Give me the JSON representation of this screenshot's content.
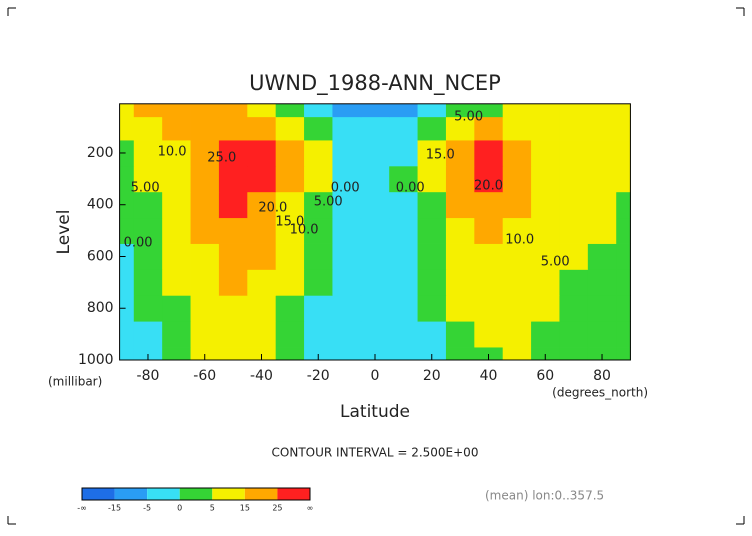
{
  "chart_data": {
    "type": "contour",
    "title": "UWND_1988-ANN_NCEP",
    "y_label": "Level",
    "y_unit": "(millibar)",
    "x_label": "Latitude",
    "x_unit": "(degrees_north)",
    "contour_interval": "CONTOUR INTERVAL = 2.500E+00",
    "footnote": "(mean) lon:0..357.5",
    "x": [
      -90,
      -80,
      -70,
      -60,
      -50,
      -40,
      -30,
      -20,
      -10,
      0,
      10,
      20,
      30,
      40,
      50,
      60,
      70,
      80,
      90
    ],
    "y": [
      1000,
      900,
      800,
      700,
      600,
      500,
      400,
      300,
      200,
      100,
      20
    ],
    "z": [
      [
        -1,
        -1,
        2,
        6,
        8,
        5,
        0,
        -3,
        -4,
        -3,
        -3,
        -2,
        1,
        4,
        5,
        3,
        1,
        0,
        0
      ],
      [
        -1,
        -1,
        3,
        8,
        11,
        7,
        2,
        -2,
        -4,
        -3,
        -3,
        -1,
        3,
        7,
        7,
        4,
        2,
        1,
        1
      ],
      [
        -1,
        0,
        4,
        10,
        14,
        9,
        3,
        -1,
        -3,
        -3,
        -3,
        0,
        5,
        10,
        9,
        5,
        3,
        2,
        2
      ],
      [
        -1,
        1,
        5,
        12,
        17,
        12,
        5,
        1,
        -2,
        -3,
        -2,
        1,
        7,
        12,
        10,
        6,
        4,
        3,
        3
      ],
      [
        -1,
        2,
        6,
        14,
        20,
        15,
        7,
        2,
        -2,
        -4,
        -2,
        2,
        9,
        14,
        11,
        7,
        5,
        4,
        3
      ],
      [
        0,
        3,
        8,
        16,
        23,
        19,
        10,
        3,
        -1,
        -3,
        -1,
        3,
        12,
        17,
        13,
        8,
        6,
        5,
        4
      ],
      [
        1,
        4,
        10,
        18,
        26,
        24,
        14,
        4,
        -1,
        -3,
        -1,
        4,
        16,
        21,
        15,
        9,
        7,
        5,
        4
      ],
      [
        2,
        5,
        12,
        20,
        28,
        29,
        19,
        6,
        -1,
        -3,
        0,
        6,
        21,
        25,
        16,
        10,
        7,
        6,
        5
      ],
      [
        3,
        6,
        14,
        22,
        29,
        30,
        22,
        7,
        -2,
        -3,
        -1,
        7,
        23,
        27,
        17,
        10,
        8,
        7,
        6
      ],
      [
        5,
        8,
        15,
        20,
        24,
        22,
        14,
        4,
        -3,
        -4,
        -3,
        3,
        14,
        16,
        12,
        8,
        7,
        6,
        6
      ],
      [
        12,
        18,
        22,
        24,
        20,
        12,
        4,
        -3,
        -8,
        -10,
        -8,
        -4,
        1,
        4,
        6,
        6,
        5,
        5,
        5
      ]
    ],
    "xlim": [
      -90,
      90
    ],
    "xticks": [
      -80,
      -60,
      -40,
      -20,
      0,
      20,
      40,
      60,
      80
    ],
    "ylim": [
      1000,
      10
    ],
    "yticks": [
      200,
      400,
      600,
      800,
      1000
    ],
    "colorbar_ticks": [
      {
        "value": null,
        "label": "-∞"
      },
      -15,
      -5,
      0,
      5,
      15,
      25,
      {
        "value": null,
        "label": "∞"
      }
    ],
    "colors": [
      "#1e6ee6",
      "#2a9df4",
      "#38dff5",
      "#35d435",
      "#f5f000",
      "#ffa800",
      "#ff2020"
    ],
    "contour_labels": [
      {
        "text": "10.0",
        "x": -71.5,
        "y": 196
      },
      {
        "text": "25.0",
        "x": -54,
        "y": 219
      },
      {
        "text": "5.00",
        "x": -81,
        "y": 335
      },
      {
        "text": "0.00",
        "x": -83.5,
        "y": 548
      },
      {
        "text": "20.0",
        "x": -36,
        "y": 413
      },
      {
        "text": "15.0",
        "x": -30,
        "y": 467
      },
      {
        "text": "10.0",
        "x": -25,
        "y": 498
      },
      {
        "text": "5.00",
        "x": -16.5,
        "y": 389
      },
      {
        "text": "0.00",
        "x": -10.5,
        "y": 335
      },
      {
        "text": "5.00",
        "x": 33,
        "y": 61
      },
      {
        "text": "15.0",
        "x": 23,
        "y": 208
      },
      {
        "text": "0.00",
        "x": 12.4,
        "y": 335
      },
      {
        "text": "20.0",
        "x": 40,
        "y": 328
      },
      {
        "text": "10.0",
        "x": 51,
        "y": 536
      },
      {
        "text": "5.00",
        "x": 63.5,
        "y": 621
      }
    ]
  }
}
